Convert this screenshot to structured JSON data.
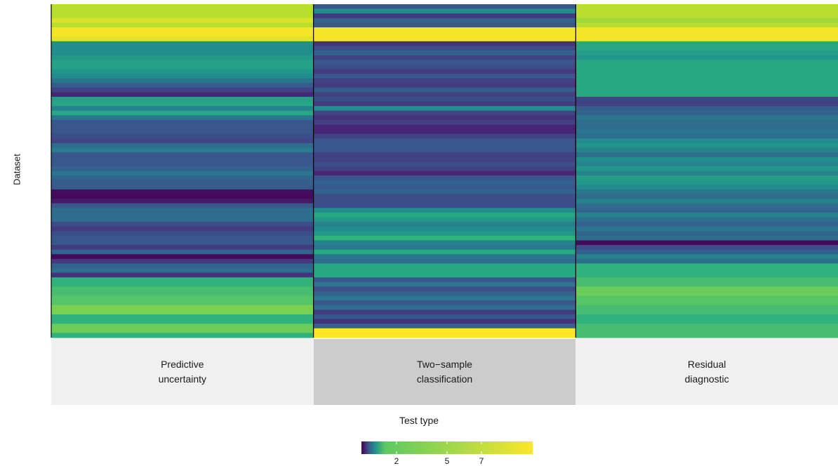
{
  "chart_data": {
    "type": "heatmap",
    "ylabel": "Dataset",
    "xlabel": "Test type",
    "colormap": "viridis",
    "value_range": [
      1,
      9
    ],
    "colorbar_ticks": [
      "2",
      "5",
      "7"
    ],
    "colors": [
      "#440154",
      "#3b528b",
      "#21918c",
      "#5ec962",
      "#fde725"
    ],
    "columns": [
      {
        "label_lines": [
          "Predictive",
          "uncertainty"
        ],
        "strip_color": "#f0f0f0",
        "values": [
          8.2,
          8.2,
          8.2,
          8.6,
          8.2,
          8.9,
          8.9,
          8.7,
          4.9,
          4.9,
          4.9,
          5.3,
          5.6,
          5.6,
          5.3,
          4.9,
          4.2,
          3.4,
          2.6,
          1.9,
          5.6,
          5.9,
          4.6,
          5.9,
          4.2,
          3.2,
          3.2,
          3.2,
          2.9,
          2.7,
          3.9,
          4.4,
          3.2,
          3.2,
          3.2,
          3.6,
          4.2,
          3.6,
          3.4,
          3.4,
          1.3,
          1.2,
          1.6,
          3.2,
          3.9,
          3.9,
          3.9,
          2.9,
          2.4,
          2.9,
          3.2,
          3.2,
          2.4,
          3.6,
          1.2,
          2.4,
          3.6,
          3.9,
          2.2,
          6.2,
          6.2,
          6.6,
          6.6,
          6.9,
          6.9,
          7.4,
          7.4,
          6.2,
          6.2,
          7.2,
          7.2,
          6.2
        ]
      },
      {
        "label_lines": [
          "Two−sample",
          "classification"
        ],
        "strip_color": "#cccccc",
        "values": [
          3.2,
          4.9,
          2.4,
          3.6,
          3.2,
          8.9,
          8.9,
          8.9,
          2.2,
          2.9,
          3.6,
          2.6,
          3.2,
          2.9,
          2.4,
          3.2,
          2.6,
          2.4,
          3.4,
          2.6,
          2.9,
          2.4,
          4.9,
          2.6,
          2.2,
          2.6,
          1.9,
          1.9,
          2.6,
          3.2,
          3.2,
          3.2,
          2.6,
          2.6,
          2.9,
          2.6,
          1.9,
          3.2,
          3.6,
          3.2,
          3.6,
          2.9,
          2.9,
          2.9,
          4.9,
          5.9,
          5.3,
          4.6,
          4.9,
          5.3,
          6.2,
          4.6,
          4.2,
          5.9,
          4.2,
          3.9,
          5.9,
          5.9,
          5.9,
          3.2,
          4.2,
          2.9,
          3.6,
          4.2,
          3.2,
          3.9,
          2.4,
          3.2,
          2.2,
          3.6,
          9.0,
          9.0
        ]
      },
      {
        "label_lines": [
          "Residual",
          "diagnostic"
        ],
        "strip_color": "#f0f0f0",
        "values": [
          8.2,
          8.2,
          8.2,
          7.9,
          8.2,
          8.9,
          8.9,
          8.9,
          5.9,
          5.9,
          5.5,
          5.2,
          5.9,
          5.9,
          5.9,
          5.9,
          5.9,
          5.9,
          5.9,
          5.9,
          2.6,
          2.6,
          3.4,
          3.6,
          4.2,
          3.9,
          3.9,
          4.2,
          3.9,
          4.9,
          5.2,
          4.6,
          3.9,
          4.9,
          4.6,
          5.2,
          4.6,
          5.5,
          5.2,
          4.9,
          4.2,
          3.9,
          4.6,
          3.9,
          3.6,
          4.6,
          3.9,
          3.6,
          4.2,
          3.6,
          3.9,
          1.2,
          2.9,
          3.6,
          4.6,
          3.9,
          6.2,
          6.2,
          6.2,
          6.6,
          6.6,
          7.2,
          7.2,
          6.9,
          6.9,
          6.6,
          6.6,
          6.2,
          6.2,
          6.6,
          6.6,
          6.6
        ]
      }
    ]
  }
}
